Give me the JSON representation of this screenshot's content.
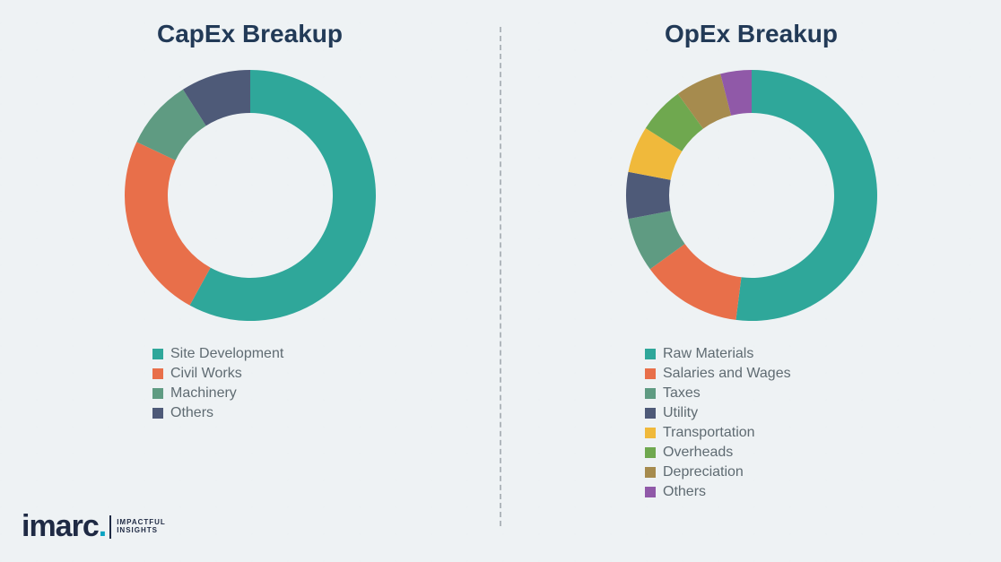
{
  "background_color": "#eef2f4",
  "title_color": "#223a57",
  "title_fontsize": 28,
  "legend_text_color": "#5f6b72",
  "legend_fontsize": 16,
  "divider_color": "#b0b7bc",
  "capex": {
    "title": "CapEx Breakup",
    "chart": {
      "type": "donut",
      "outer_radius": 140,
      "inner_radius": 92,
      "background_color": "transparent",
      "slices": [
        {
          "label": "Site Development",
          "value": 58,
          "color": "#2fa79a"
        },
        {
          "label": "Civil Works",
          "value": 24,
          "color": "#e86f4a"
        },
        {
          "label": "Machinery",
          "value": 9,
          "color": "#5f9b82"
        },
        {
          "label": "Others",
          "value": 9,
          "color": "#4e5a78"
        }
      ],
      "start_angle_deg": -90,
      "direction": "clockwise"
    }
  },
  "opex": {
    "title": "OpEx Breakup",
    "chart": {
      "type": "donut",
      "outer_radius": 140,
      "inner_radius": 92,
      "background_color": "transparent",
      "slices": [
        {
          "label": "Raw Materials",
          "value": 52,
          "color": "#2fa79a"
        },
        {
          "label": "Salaries and Wages",
          "value": 13,
          "color": "#e86f4a"
        },
        {
          "label": "Taxes",
          "value": 7,
          "color": "#5f9b82"
        },
        {
          "label": "Utility",
          "value": 6,
          "color": "#4e5a78"
        },
        {
          "label": "Transportation",
          "value": 6,
          "color": "#f0b93b"
        },
        {
          "label": "Overheads",
          "value": 6,
          "color": "#6fa84f"
        },
        {
          "label": "Depreciation",
          "value": 6,
          "color": "#a68b4e"
        },
        {
          "label": "Others",
          "value": 4,
          "color": "#9059a8"
        }
      ],
      "start_angle_deg": -90,
      "direction": "clockwise"
    }
  },
  "logo": {
    "word": "imarc",
    "tag_line1": "IMPACTFUL",
    "tag_line2": "INSIGHTS",
    "word_color": "#1f2a44",
    "dot_color": "#0aa3c2"
  }
}
